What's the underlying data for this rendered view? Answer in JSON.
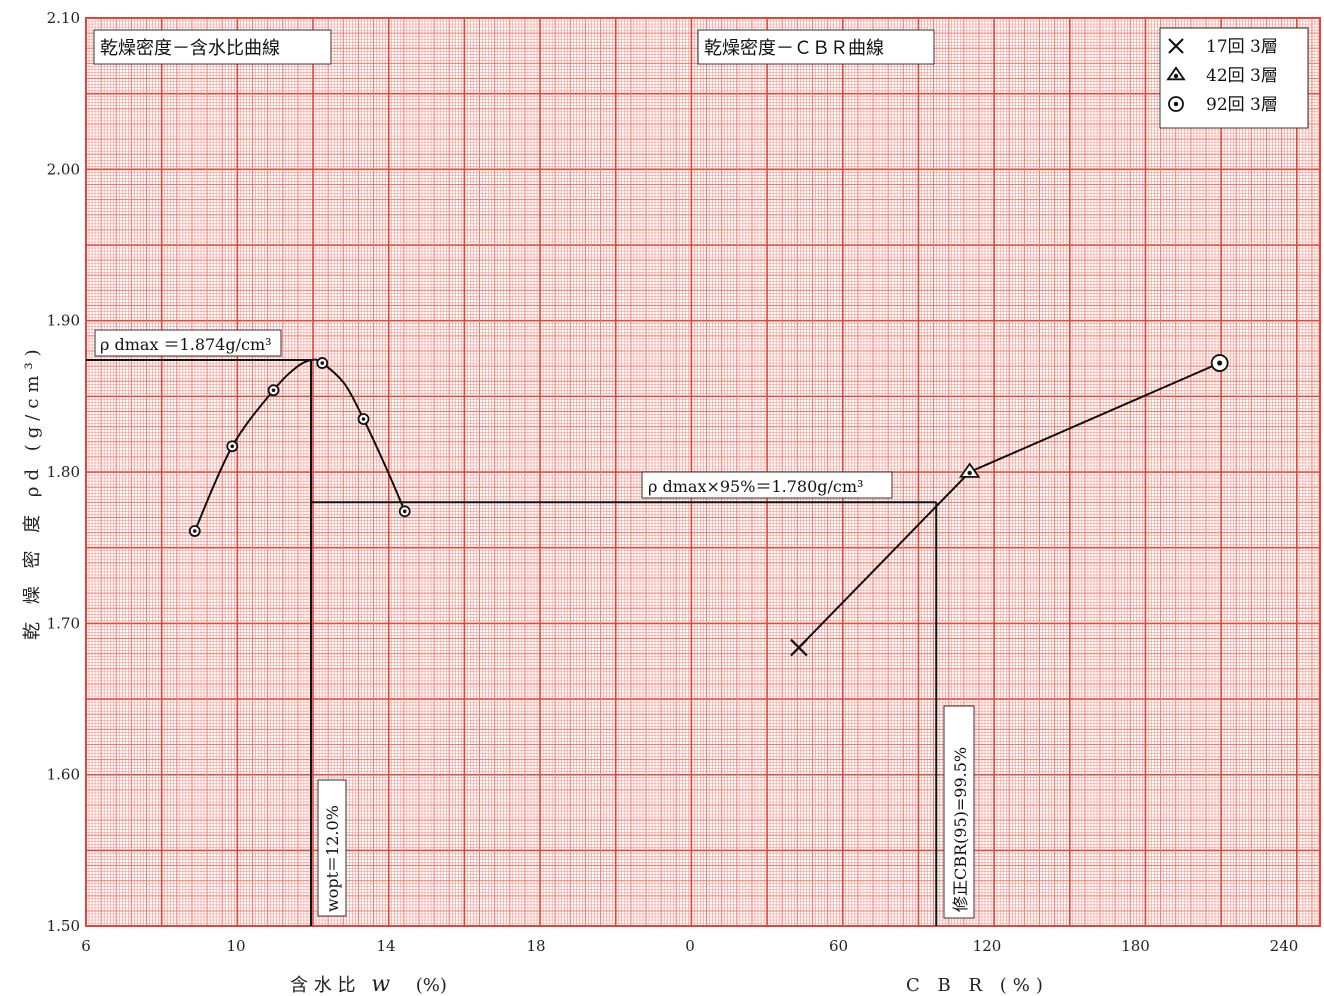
{
  "chart_data": [
    {
      "type": "line",
      "title": "乾燥密度－含水比曲線",
      "xlabel_main": "含 水 比",
      "xlabel_symbol": "w",
      "xlabel_unit": "(%)",
      "ylabel": "乾 燥 密 度 ρd (g/cm³)",
      "xlim": [
        6,
        21
      ],
      "ylim": [
        1.5,
        2.1
      ],
      "x_ticks": [
        "6",
        "10",
        "14",
        "18"
      ],
      "x_tick_values": [
        6,
        10,
        14,
        18
      ],
      "y_ticks": [
        "1.50",
        "1.60",
        "1.70",
        "1.80",
        "1.90",
        "2.00",
        "2.10"
      ],
      "y_tick_values": [
        1.5,
        1.6,
        1.7,
        1.8,
        1.9,
        2.0,
        2.1
      ],
      "grid": true,
      "series": [
        {
          "points": [
            {
              "x": 8.9,
              "y": 1.761
            },
            {
              "x": 9.9,
              "y": 1.817
            },
            {
              "x": 11.0,
              "y": 1.854
            },
            {
              "x": 12.3,
              "y": 1.872
            },
            {
              "x": 13.4,
              "y": 1.835
            },
            {
              "x": 14.5,
              "y": 1.774
            }
          ],
          "curve": [
            {
              "x": 8.9,
              "y": 1.761
            },
            {
              "x": 9.9,
              "y": 1.817
            },
            {
              "x": 11.0,
              "y": 1.854
            },
            {
              "x": 11.6,
              "y": 1.869
            },
            {
              "x": 12.0,
              "y": 1.874
            },
            {
              "x": 12.3,
              "y": 1.872
            },
            {
              "x": 12.9,
              "y": 1.858
            },
            {
              "x": 13.4,
              "y": 1.835
            },
            {
              "x": 14.0,
              "y": 1.803
            },
            {
              "x": 14.5,
              "y": 1.774
            }
          ]
        }
      ],
      "annotations": {
        "rho_dmax_label": "ρ dmax ＝1.874g/cm³",
        "rho_dmax_value": 1.874,
        "w_opt_label": "wopt＝12.0%",
        "w_opt_value": 12.0
      }
    },
    {
      "type": "line",
      "title": "乾燥密度－ＣＢＲ曲線",
      "xlabel": "C B R (%)",
      "xlim": [
        0,
        260
      ],
      "ylim": [
        1.5,
        2.1
      ],
      "x_ticks": [
        "0",
        "60",
        "120",
        "180",
        "240"
      ],
      "x_tick_values": [
        0,
        60,
        120,
        180,
        240
      ],
      "legend_position": "top-right",
      "legend": [
        {
          "marker": "cross",
          "label": "17回  3層"
        },
        {
          "marker": "triangle",
          "label": "42回  3層"
        },
        {
          "marker": "circle-dot",
          "label": "92回  3層"
        }
      ],
      "series": [
        {
          "points": [
            {
              "x": 44,
              "y": 1.684,
              "marker": "cross"
            },
            {
              "x": 113,
              "y": 1.8,
              "marker": "triangle"
            },
            {
              "x": 214,
              "y": 1.872,
              "marker": "circle-dot"
            }
          ]
        }
      ],
      "annotations": {
        "rho95_label": "ρ dmax×95%＝1.780g/cm³",
        "rho95_value": 1.78,
        "cbr95_label": "修正CBR(95)=99.5%",
        "cbr95_value": 99.5
      }
    }
  ],
  "colors": {
    "grid_major": "#e0453a",
    "grid_minor": "#f07a6e",
    "background": "#ffffff",
    "ink": "#111111"
  }
}
